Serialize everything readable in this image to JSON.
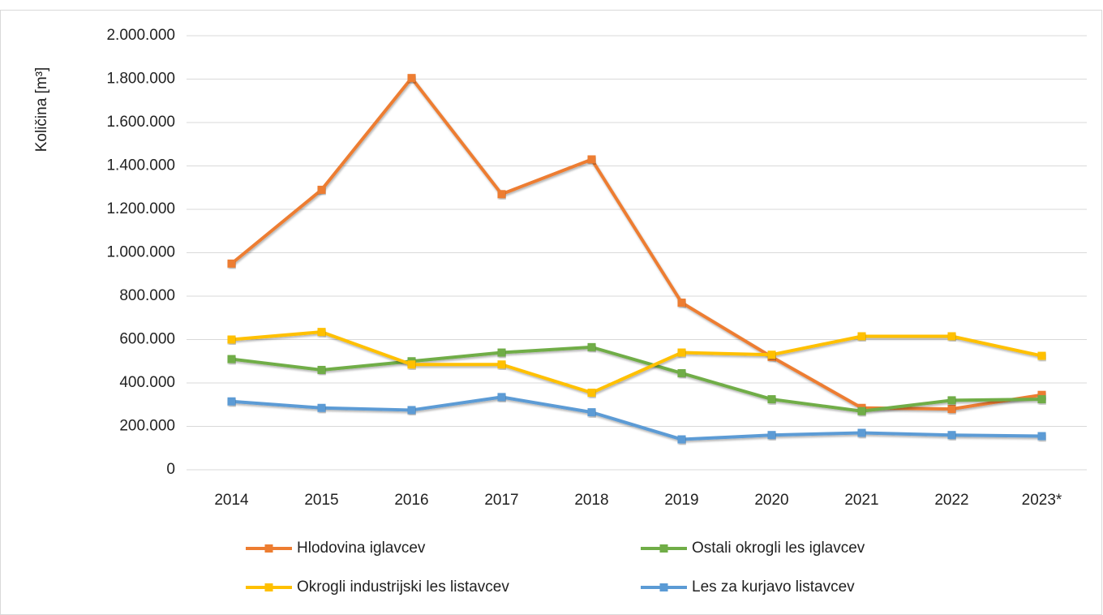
{
  "chart_data": {
    "type": "line",
    "y_label": "Količina [m³]",
    "categories": [
      "2014",
      "2015",
      "2016",
      "2017",
      "2018",
      "2019",
      "2020",
      "2021",
      "2022",
      "2023*"
    ],
    "series": [
      {
        "name": "Hlodovina iglavcev",
        "color": "#ed7d31",
        "values": [
          950000,
          1290000,
          1805000,
          1270000,
          1430000,
          770000,
          520000,
          285000,
          280000,
          345000
        ]
      },
      {
        "name": "Ostali okrogli les iglavcev",
        "color": "#70ad47",
        "values": [
          510000,
          460000,
          500000,
          540000,
          565000,
          445000,
          325000,
          270000,
          320000,
          325000
        ]
      },
      {
        "name": "Okrogli industrijski les listavcev",
        "color": "#ffc000",
        "values": [
          600000,
          635000,
          485000,
          485000,
          355000,
          540000,
          530000,
          615000,
          615000,
          525000
        ]
      },
      {
        "name": "Les za kurjavo listavcev",
        "color": "#5b9bd5",
        "values": [
          315000,
          285000,
          275000,
          335000,
          265000,
          140000,
          160000,
          170000,
          160000,
          155000
        ]
      }
    ],
    "ylim": [
      0,
      2000000
    ],
    "yticks": [
      0,
      {
        "value": 200000,
        "label": "200.000"
      },
      {
        "value": 400000,
        "label": "400.000"
      },
      {
        "value": 600000,
        "label": "600.000"
      },
      {
        "value": 800000,
        "label": "800.000"
      },
      {
        "value": 1000000,
        "label": "1.000.000"
      },
      {
        "value": 1200000,
        "label": "1.200.000"
      },
      {
        "value": 1400000,
        "label": "1.400.000"
      },
      {
        "value": 1600000,
        "label": "1.600.000"
      },
      {
        "value": 1800000,
        "label": "1.800.000"
      },
      {
        "value": 2000000,
        "label": "2.000.000"
      }
    ],
    "grid": true,
    "legend": "bottom"
  }
}
